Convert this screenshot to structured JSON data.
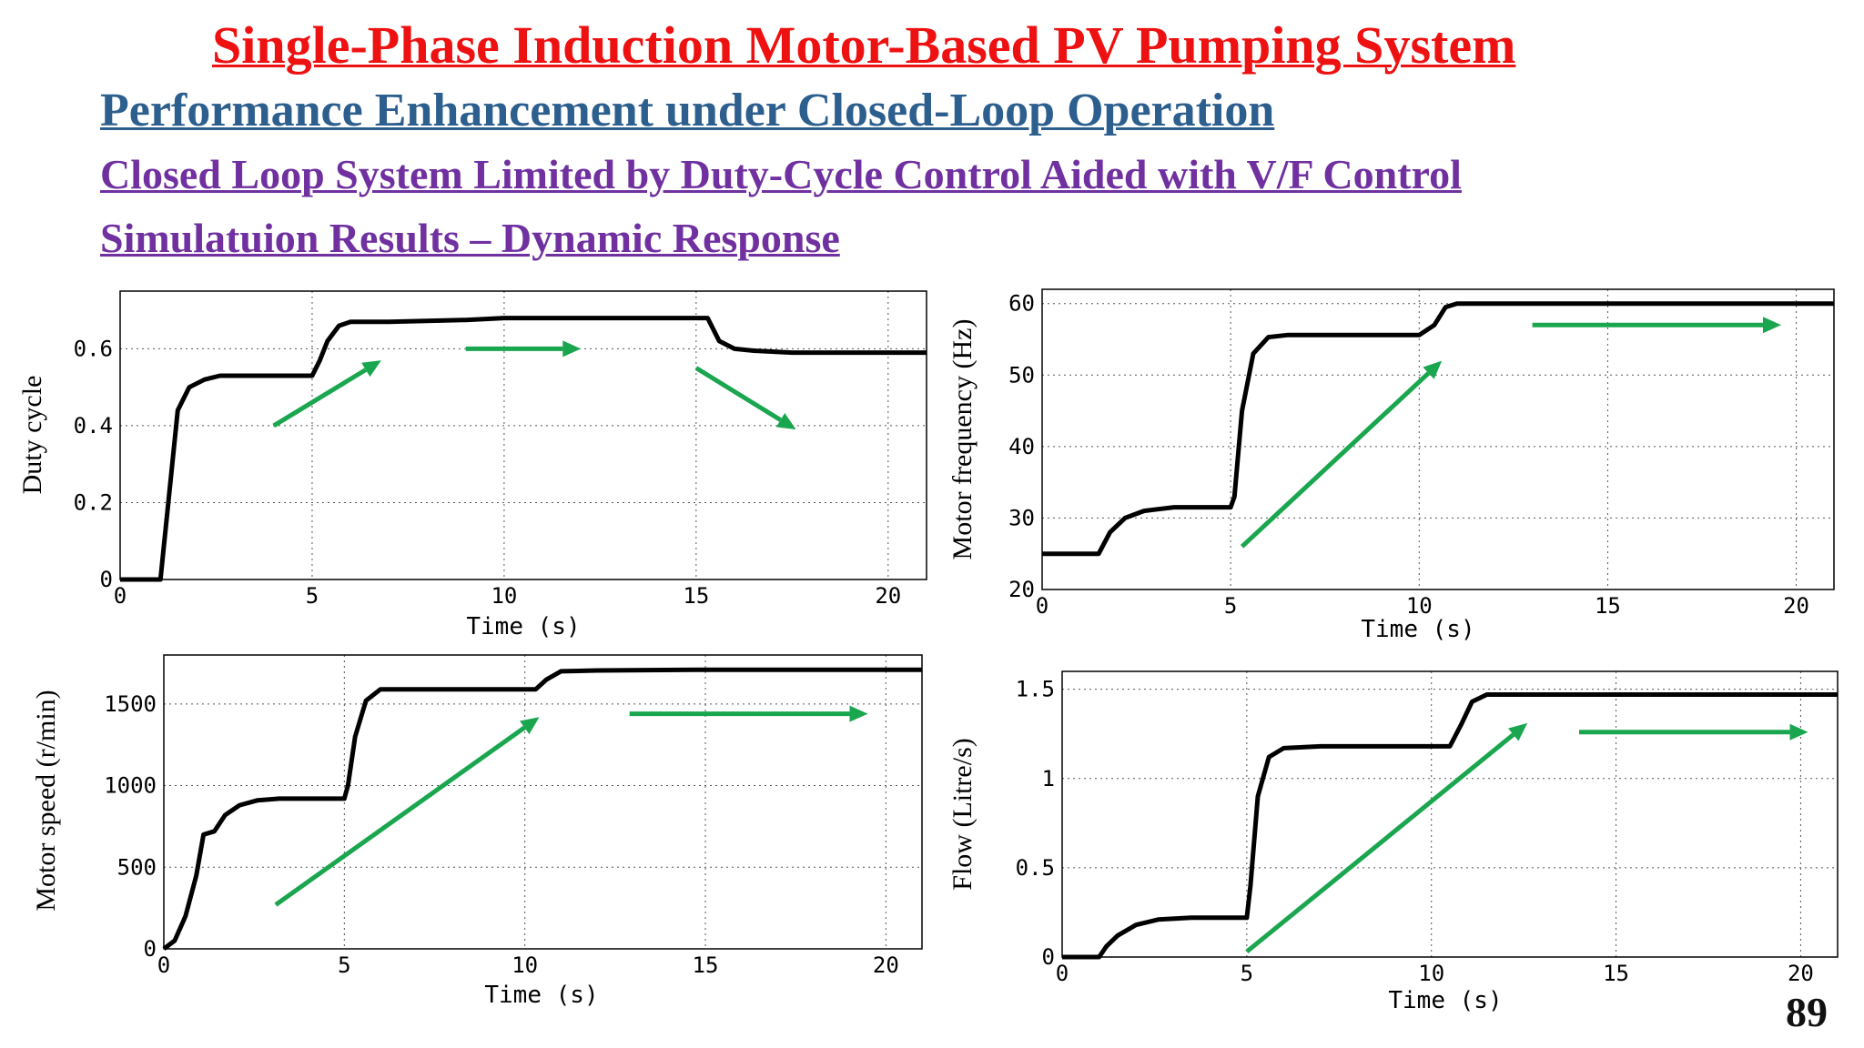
{
  "header": {
    "title": "Single-Phase Induction Motor-Based PV Pumping System",
    "subtitle1": "Performance Enhancement under Closed-Loop Operation",
    "subtitle2": "Closed Loop System Limited by Duty-Cycle Control Aided with V/F Control",
    "subtitle3": "Simulatuion Results – Dynamic Response"
  },
  "page_number": "89",
  "colors": {
    "title": "#ee1111",
    "subtitle_blue": "#2d5f8e",
    "subtitle_purple": "#7030a0",
    "trace": "#000000",
    "arrow": "#1aa64f"
  },
  "chart_data": [
    {
      "id": "duty",
      "type": "line",
      "xlabel": "Time (s)",
      "ylabel": "Duty cycle",
      "xlim": [
        0,
        21
      ],
      "ylim": [
        0,
        0.75
      ],
      "xticks": [
        0,
        5,
        10,
        15,
        20
      ],
      "yticks": [
        0,
        0.2,
        0.4,
        0.6
      ],
      "ytick_labels": [
        "0",
        "0.2",
        "0.4",
        "0.6"
      ],
      "grid": true,
      "series": [
        {
          "x": [
            0,
            1.05,
            1.5,
            1.8,
            2.2,
            2.6,
            3,
            5,
            5.2,
            5.4,
            5.7,
            6,
            7,
            9,
            10,
            10.5,
            12,
            14,
            15.3,
            15.6,
            16,
            16.5,
            17.5,
            18.5,
            20,
            21
          ],
          "y": [
            0,
            0,
            0.44,
            0.5,
            0.52,
            0.53,
            0.53,
            0.53,
            0.57,
            0.62,
            0.66,
            0.67,
            0.67,
            0.675,
            0.68,
            0.68,
            0.68,
            0.68,
            0.68,
            0.62,
            0.6,
            0.595,
            0.59,
            0.59,
            0.59,
            0.59
          ]
        }
      ],
      "arrows": [
        {
          "x1": 4,
          "y1": 0.4,
          "x2": 6.8,
          "y2": 0.57
        },
        {
          "x1": 9,
          "y1": 0.6,
          "x2": 12,
          "y2": 0.6
        },
        {
          "x1": 15,
          "y1": 0.55,
          "x2": 17.6,
          "y2": 0.39
        }
      ]
    },
    {
      "id": "freq",
      "type": "line",
      "xlabel": "Time (s)",
      "ylabel": "Motor frequency (Hz)",
      "xlim": [
        0,
        21
      ],
      "ylim": [
        20,
        62
      ],
      "xticks": [
        0,
        5,
        10,
        15,
        20
      ],
      "yticks": [
        20,
        30,
        40,
        50,
        60
      ],
      "ytick_labels": [
        "20",
        "30",
        "40",
        "50",
        "60"
      ],
      "grid": true,
      "series": [
        {
          "x": [
            0,
            1.5,
            1.8,
            2.2,
            2.7,
            3.5,
            5,
            5.1,
            5.3,
            5.6,
            6,
            6.5,
            8,
            10,
            10.4,
            10.7,
            11,
            12,
            15,
            21
          ],
          "y": [
            25,
            25,
            28,
            30,
            31,
            31.5,
            31.5,
            33,
            45,
            53,
            55.3,
            55.6,
            55.6,
            55.6,
            57,
            59.5,
            60,
            60,
            60,
            60
          ]
        }
      ],
      "arrows": [
        {
          "x1": 5.3,
          "y1": 26,
          "x2": 10.6,
          "y2": 52
        },
        {
          "x1": 13,
          "y1": 57,
          "x2": 19.6,
          "y2": 57
        }
      ]
    },
    {
      "id": "speed",
      "type": "line",
      "xlabel": "Time (s)",
      "ylabel": "Motor speed (r/min)",
      "xlim": [
        0,
        21
      ],
      "ylim": [
        0,
        1800
      ],
      "xticks": [
        0,
        5,
        10,
        15,
        20
      ],
      "yticks": [
        0,
        500,
        1000,
        1500
      ],
      "ytick_labels": [
        "0",
        "500",
        "1000",
        "1500"
      ],
      "grid": true,
      "series": [
        {
          "x": [
            0,
            0.3,
            0.6,
            0.9,
            1.1,
            1.4,
            1.7,
            2.1,
            2.6,
            3.2,
            5,
            5.1,
            5.3,
            5.6,
            6,
            6.5,
            8,
            10.3,
            10.6,
            11,
            12,
            15,
            21
          ],
          "y": [
            0,
            50,
            200,
            450,
            700,
            720,
            820,
            880,
            910,
            920,
            920,
            1000,
            1300,
            1520,
            1590,
            1590,
            1590,
            1590,
            1650,
            1700,
            1705,
            1710,
            1710
          ]
        }
      ],
      "arrows": [
        {
          "x1": 3.1,
          "y1": 270,
          "x2": 10.4,
          "y2": 1420
        },
        {
          "x1": 12.9,
          "y1": 1440,
          "x2": 19.5,
          "y2": 1440
        }
      ]
    },
    {
      "id": "flow",
      "type": "line",
      "xlabel": "Time (s)",
      "ylabel": "Flow (Litre/s)",
      "xlim": [
        0,
        21
      ],
      "ylim": [
        0,
        1.6
      ],
      "xticks": [
        0,
        5,
        10,
        15,
        20
      ],
      "yticks": [
        0,
        0.5,
        1,
        1.5
      ],
      "ytick_labels": [
        "0",
        "0.5",
        "1",
        "1.5"
      ],
      "grid": true,
      "series": [
        {
          "x": [
            0,
            1,
            1.2,
            1.5,
            2,
            2.6,
            3.5,
            5,
            5.1,
            5.3,
            5.6,
            6,
            7,
            10.5,
            10.8,
            11.1,
            11.5,
            12,
            15,
            21
          ],
          "y": [
            0,
            0,
            0.06,
            0.12,
            0.18,
            0.21,
            0.22,
            0.22,
            0.4,
            0.9,
            1.12,
            1.17,
            1.18,
            1.18,
            1.3,
            1.43,
            1.47,
            1.47,
            1.47,
            1.47
          ]
        }
      ],
      "arrows": [
        {
          "x1": 5,
          "y1": 0.03,
          "x2": 12.6,
          "y2": 1.31
        },
        {
          "x1": 14,
          "y1": 1.26,
          "x2": 20.2,
          "y2": 1.26
        }
      ]
    }
  ]
}
